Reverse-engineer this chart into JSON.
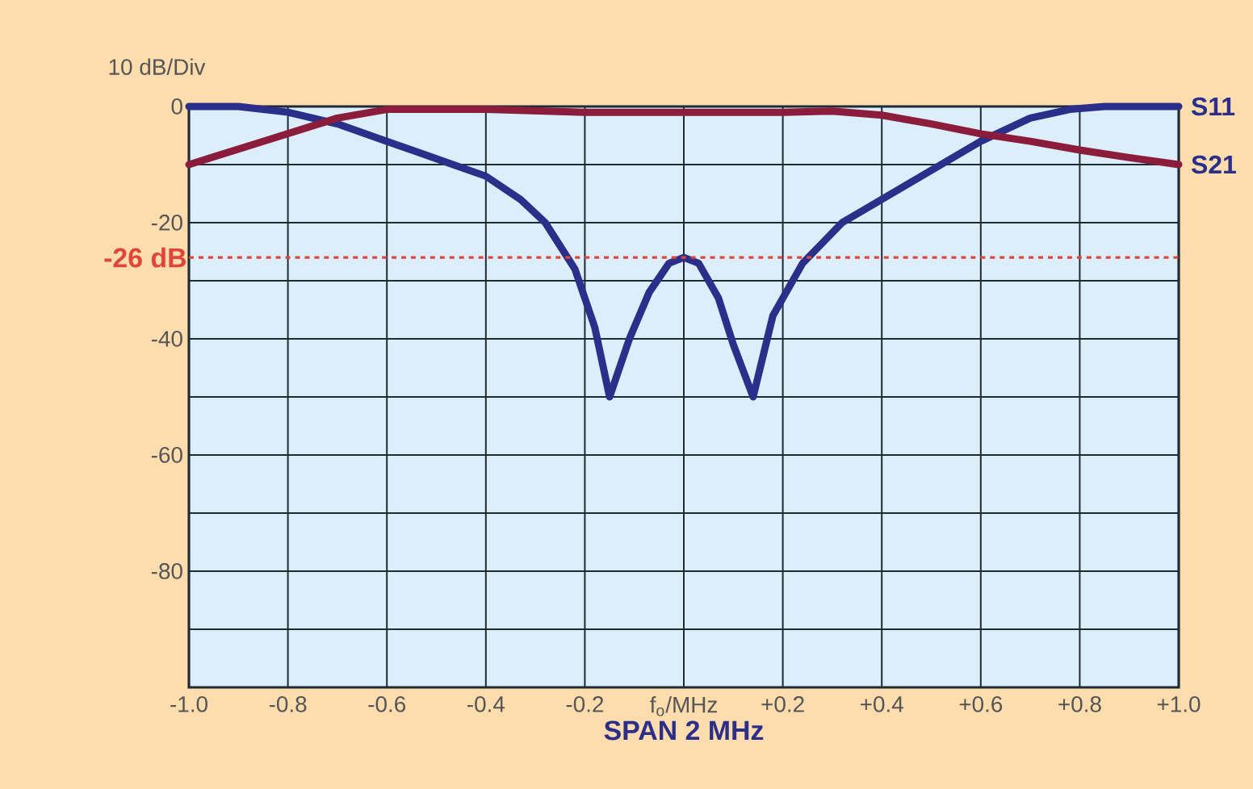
{
  "chart_data": {
    "type": "line",
    "xlabel": "SPAN 2 MHz",
    "ylabel": "10 dB/Div",
    "xlim": [
      -1.0,
      1.0
    ],
    "ylim": [
      -100,
      0
    ],
    "xticks": [
      {
        "value": -1.0,
        "label": "-1.0"
      },
      {
        "value": -0.8,
        "label": "-0.8"
      },
      {
        "value": -0.6,
        "label": "-0.6"
      },
      {
        "value": -0.4,
        "label": "-0.4"
      },
      {
        "value": -0.2,
        "label": "-0.2"
      },
      {
        "value": 0,
        "label": "f$_{o}$/MHz"
      },
      {
        "value": 0.2,
        "label": "+0.2"
      },
      {
        "value": 0.4,
        "label": "+0.4"
      },
      {
        "value": 0.6,
        "label": "+0.6"
      },
      {
        "value": 0.8,
        "label": "+0.8"
      },
      {
        "value": 1.0,
        "label": "+1.0"
      }
    ],
    "yticks": [
      0,
      {
        "value": -10,
        "label": null
      },
      -20,
      {
        "value": -30,
        "label": null
      },
      -40,
      {
        "value": -50,
        "label": null
      },
      -60,
      {
        "value": -70,
        "label": null
      },
      -80,
      {
        "value": -90,
        "label": null
      },
      {
        "value": -100,
        "label": null
      }
    ],
    "grid": true,
    "legend": false,
    "marker": "none",
    "line_style": "solid",
    "series": [
      {
        "name": "S11",
        "color": "#2b2f8a",
        "x": [
          -1.0,
          -0.9,
          -0.8,
          -0.7,
          -0.6,
          -0.5,
          -0.4,
          -0.33,
          -0.28,
          -0.22,
          -0.18,
          -0.15,
          -0.11,
          -0.07,
          -0.03,
          0.0,
          0.03,
          0.07,
          0.1,
          0.14,
          0.18,
          0.24,
          0.32,
          0.4,
          0.5,
          0.6,
          0.7,
          0.78,
          0.85,
          1.0
        ],
        "values": [
          0,
          0,
          -1,
          -3,
          -6,
          -9,
          -12,
          -16,
          -20,
          -28,
          -38,
          -50,
          -40,
          -32,
          -27,
          -26,
          -27,
          -33,
          -41,
          -50,
          -36,
          -27,
          -20,
          -16,
          -11,
          -6,
          -2,
          -0.5,
          0,
          0
        ]
      },
      {
        "name": "S21",
        "color": "#8c1c3c",
        "x": [
          -1.0,
          -0.85,
          -0.7,
          -0.6,
          -0.4,
          -0.2,
          0.0,
          0.2,
          0.3,
          0.4,
          0.5,
          0.6,
          0.7,
          0.8,
          0.9,
          1.0
        ],
        "values": [
          -10,
          -6,
          -2,
          -0.5,
          -0.5,
          -1,
          -1,
          -1,
          -0.8,
          -1.5,
          -3,
          -4.7,
          -6,
          -7.5,
          -8.8,
          -10
        ]
      }
    ],
    "ref_lines": [
      {
        "axis": "y",
        "value": -26,
        "label": "-26 dB",
        "color": "#e0453a",
        "line_style": "dashed"
      }
    ]
  }
}
